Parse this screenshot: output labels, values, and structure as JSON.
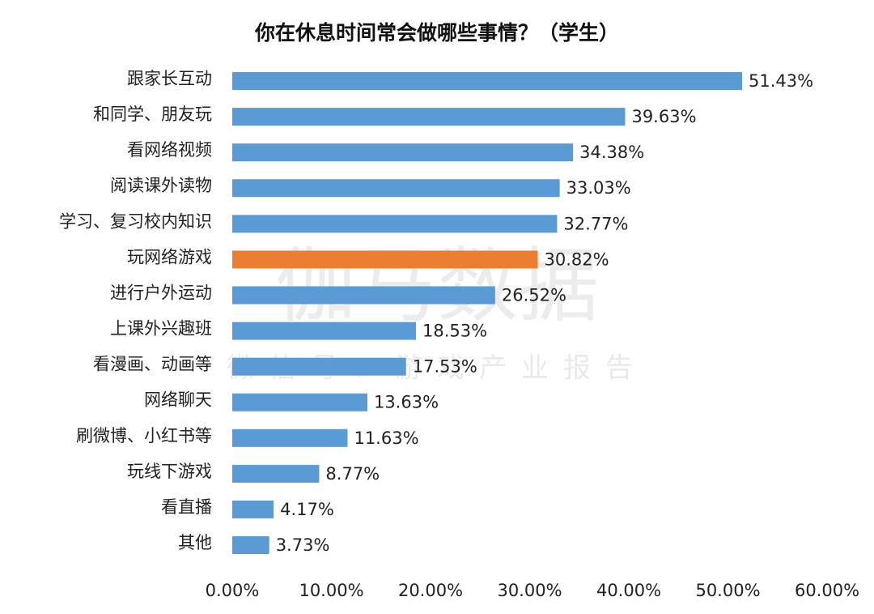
{
  "chart_data": {
    "type": "bar",
    "orientation": "horizontal",
    "title": "你在休息时间常会做哪些事情？（学生）",
    "watermark": [
      "伽马数据",
      "微信号：游戏产业报告"
    ],
    "categories": [
      "跟家长互动",
      "和同学、朋友玩",
      "看网络视频",
      "阅读课外读物",
      "学习、复习校内知识",
      "玩网络游戏",
      "进行户外运动",
      "上课外兴趣班",
      "看漫画、动画等",
      "网络聊天",
      "刷微博、小红书等",
      "玩线下游戏",
      "看直播",
      "其他"
    ],
    "values": [
      51.43,
      39.63,
      34.38,
      33.03,
      32.77,
      30.82,
      26.52,
      18.53,
      17.53,
      13.63,
      11.63,
      8.77,
      4.17,
      3.73
    ],
    "value_labels": [
      "51.43%",
      "39.63%",
      "34.38%",
      "33.03%",
      "32.77%",
      "30.82%",
      "26.52%",
      "18.53%",
      "17.53%",
      "13.63%",
      "11.63%",
      "8.77%",
      "4.17%",
      "3.73%"
    ],
    "colors": [
      "#5b9bd5",
      "#5b9bd5",
      "#5b9bd5",
      "#5b9bd5",
      "#5b9bd5",
      "#ed7d31",
      "#5b9bd5",
      "#5b9bd5",
      "#5b9bd5",
      "#5b9bd5",
      "#5b9bd5",
      "#5b9bd5",
      "#5b9bd5",
      "#5b9bd5"
    ],
    "xlim": [
      0,
      60
    ],
    "xticks": [
      {
        "value": 0,
        "label": "0.00%"
      },
      {
        "value": 10,
        "label": "10.00%"
      },
      {
        "value": 20,
        "label": "20.00%"
      },
      {
        "value": 30,
        "label": "30.00%"
      },
      {
        "value": 40,
        "label": "40.00%"
      },
      {
        "value": 50,
        "label": "50.00%"
      },
      {
        "value": 60,
        "label": "60.00%"
      }
    ],
    "grid": false
  }
}
